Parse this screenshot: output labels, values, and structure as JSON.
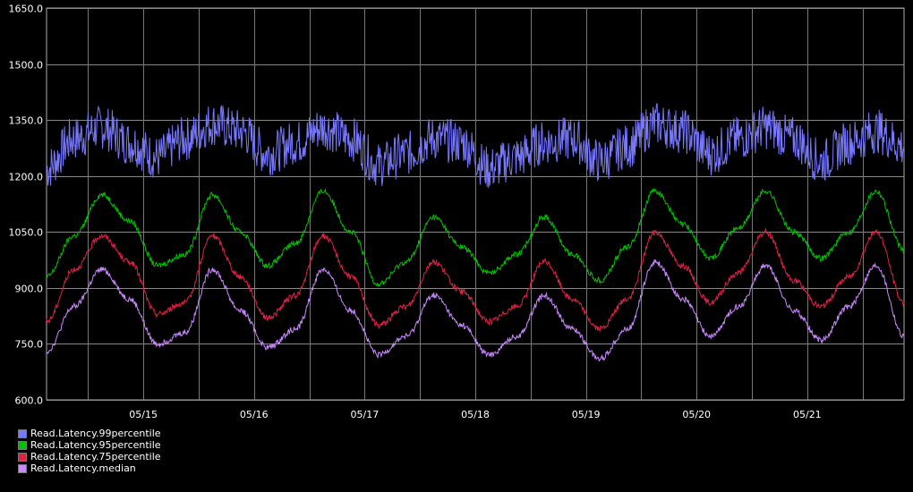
{
  "chart_data": {
    "type": "line",
    "ylim": [
      600,
      1650
    ],
    "y_ticks": [
      "600.0",
      "750.0",
      "900.0",
      "1050.0",
      "1200.0",
      "1350.0",
      "1500.0",
      "1650.0"
    ],
    "x_ticks": [
      "05/15",
      "05/16",
      "05/17",
      "05/18",
      "05/19",
      "05/20",
      "05/21"
    ],
    "xlim": [
      "05/14 03:00",
      "05/21 21:00"
    ],
    "grid": true,
    "legend_position": "bottom-left",
    "x": [
      "05/14 03:00",
      "05/14 09:00",
      "05/14 15:00",
      "05/14 21:00",
      "05/15 03:00",
      "05/15 09:00",
      "05/15 15:00",
      "05/15 21:00",
      "05/16 03:00",
      "05/16 09:00",
      "05/16 15:00",
      "05/16 21:00",
      "05/17 03:00",
      "05/17 09:00",
      "05/17 15:00",
      "05/17 21:00",
      "05/18 03:00",
      "05/18 09:00",
      "05/18 15:00",
      "05/18 21:00",
      "05/19 03:00",
      "05/19 09:00",
      "05/19 15:00",
      "05/19 21:00",
      "05/20 03:00",
      "05/20 09:00",
      "05/20 15:00",
      "05/20 21:00",
      "05/21 03:00",
      "05/21 09:00",
      "05/21 15:00",
      "05/21 21:00"
    ],
    "series": [
      {
        "name": "Read.Latency.99percentile",
        "color": "#7777ff",
        "values": [
          1220,
          1300,
          1330,
          1290,
          1250,
          1300,
          1340,
          1320,
          1260,
          1290,
          1330,
          1300,
          1230,
          1260,
          1300,
          1290,
          1220,
          1250,
          1290,
          1300,
          1240,
          1280,
          1340,
          1320,
          1260,
          1300,
          1330,
          1300,
          1240,
          1290,
          1320,
          1280
        ]
      },
      {
        "name": "Read.Latency.95percentile",
        "color": "#00c000",
        "values": [
          930,
          1040,
          1150,
          1080,
          960,
          990,
          1150,
          1050,
          960,
          1020,
          1160,
          1050,
          910,
          970,
          1090,
          1010,
          940,
          990,
          1090,
          990,
          920,
          1010,
          1160,
          1070,
          980,
          1060,
          1160,
          1050,
          980,
          1050,
          1160,
          1000
        ]
      },
      {
        "name": "Read.Latency.75percentile",
        "color": "#dd2244",
        "values": [
          810,
          950,
          1040,
          970,
          830,
          860,
          1040,
          930,
          820,
          880,
          1040,
          930,
          800,
          850,
          970,
          890,
          810,
          850,
          970,
          870,
          790,
          870,
          1050,
          960,
          860,
          940,
          1050,
          920,
          850,
          930,
          1050,
          860
        ]
      },
      {
        "name": "Read.Latency.median",
        "color": "#cc88ff",
        "values": [
          730,
          850,
          950,
          870,
          750,
          780,
          950,
          840,
          740,
          790,
          950,
          840,
          720,
          770,
          880,
          800,
          720,
          770,
          880,
          790,
          710,
          790,
          970,
          870,
          770,
          850,
          960,
          840,
          760,
          850,
          960,
          770
        ]
      }
    ]
  }
}
